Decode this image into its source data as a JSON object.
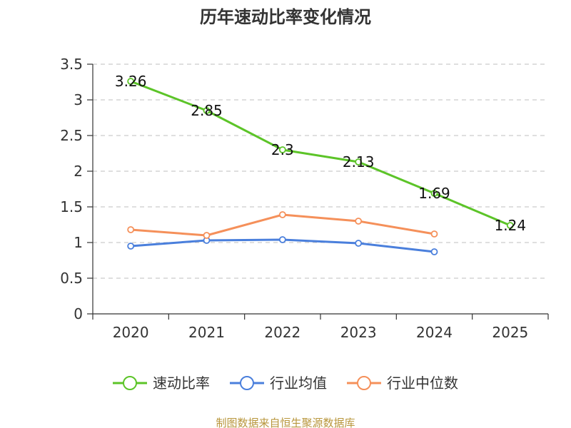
{
  "chart_data": {
    "type": "line",
    "title": "历年速动比率变化情况",
    "categories": [
      "2020",
      "2021",
      "2022",
      "2023",
      "2024",
      "2025"
    ],
    "ylim": [
      0,
      3.5
    ],
    "yticks": [
      "0",
      "0.5",
      "1",
      "1.5",
      "2",
      "2.5",
      "3",
      "3.5"
    ],
    "grid": true,
    "legend_position": "bottom",
    "series": [
      {
        "name": "速动比率",
        "color": "#5cc428",
        "values": [
          3.26,
          2.85,
          2.3,
          2.13,
          1.69,
          1.24
        ],
        "labels": [
          "3.26",
          "2.85",
          "2.3",
          "2.13",
          "1.69",
          "1.24"
        ],
        "show_labels": true
      },
      {
        "name": "行业均值",
        "color": "#4a7fdc",
        "values": [
          0.95,
          1.03,
          1.04,
          0.99,
          0.87,
          null
        ],
        "show_labels": false
      },
      {
        "name": "行业中位数",
        "color": "#f5905a",
        "values": [
          1.18,
          1.1,
          1.39,
          1.3,
          1.12,
          null
        ],
        "show_labels": false
      }
    ]
  },
  "footer": {
    "source": "制图数据来自恒生聚源数据库",
    "source_color": "#b8963c"
  }
}
